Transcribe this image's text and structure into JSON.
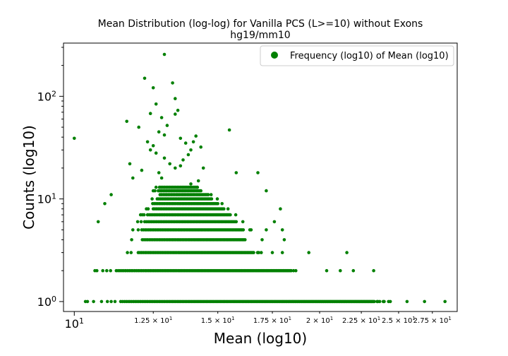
{
  "chart_data": {
    "type": "scatter",
    "title": "Mean Distribution (log-log) for Vanilla PCS (L>=10) without Exons",
    "subtitle": "hg19/mm10",
    "xlabel": "Mean (log10)",
    "ylabel": "Counts (log10)",
    "xscale": "log",
    "yscale": "log",
    "xlim": [
      9.7,
      29.5
    ],
    "ylim": [
      0.8,
      330
    ],
    "grid": false,
    "legend_position": "upper-right",
    "x_major_ticks": [
      {
        "value": 10,
        "label": "10^1"
      }
    ],
    "x_minor_ticks": [
      {
        "value": 12.5,
        "label": "1.25 × 10^1"
      },
      {
        "value": 15,
        "label": "1.5 × 10^1"
      },
      {
        "value": 17.5,
        "label": "1.75 × 10^1"
      },
      {
        "value": 20,
        "label": "2 × 10^1"
      },
      {
        "value": 22.5,
        "label": "2.25 × 10^1"
      },
      {
        "value": 25,
        "label": "2.5 × 10^1"
      },
      {
        "value": 27.5,
        "label": "2.75 × 10^1"
      }
    ],
    "y_major_ticks": [
      {
        "value": 1,
        "label": "10^0"
      },
      {
        "value": 10,
        "label": "10^1"
      },
      {
        "value": 100,
        "label": "10^2"
      }
    ],
    "series": [
      {
        "name": "Frequency (log10) of Mean (log10)",
        "color": "#008000",
        "bands": [
          {
            "y": 1,
            "x_min": 10.2,
            "x_max": 24.5,
            "density": 0.5
          },
          {
            "y": 2,
            "x_min": 10.6,
            "x_max": 19.2,
            "density": 0.5
          },
          {
            "y": 3,
            "x_min": 11.5,
            "x_max": 17.0,
            "density": 0.5
          },
          {
            "y": 4,
            "x_min": 11.7,
            "x_max": 16.6,
            "density": 0.5
          },
          {
            "y": 5,
            "x_min": 11.8,
            "x_max": 16.5,
            "density": 0.5
          },
          {
            "y": 6,
            "x_min": 11.9,
            "x_max": 16.2,
            "density": 0.5
          },
          {
            "y": 7,
            "x_min": 12.0,
            "x_max": 15.9,
            "density": 0.5
          },
          {
            "y": 8,
            "x_min": 12.2,
            "x_max": 15.5,
            "density": 0.55
          },
          {
            "y": 9,
            "x_min": 12.3,
            "x_max": 15.3,
            "density": 0.6
          },
          {
            "y": 10,
            "x_min": 12.4,
            "x_max": 15.0,
            "density": 0.65
          },
          {
            "y": 11,
            "x_min": 12.5,
            "x_max": 14.8,
            "density": 0.7
          },
          {
            "y": 12,
            "x_min": 12.5,
            "x_max": 14.5,
            "density": 0.75
          },
          {
            "y": 13,
            "x_min": 12.6,
            "x_max": 14.3,
            "density": 0.8
          }
        ],
        "points": [
          [
            10.0,
            39
          ],
          [
            25.6,
            1
          ],
          [
            26.9,
            1
          ],
          [
            28.5,
            1
          ],
          [
            23.3,
            2
          ],
          [
            22.0,
            2
          ],
          [
            21.2,
            2
          ],
          [
            20.4,
            2
          ],
          [
            21.6,
            3
          ],
          [
            17.5,
            3
          ],
          [
            18.0,
            3
          ],
          [
            19.4,
            3
          ],
          [
            18.1,
            4
          ],
          [
            17.0,
            4
          ],
          [
            18.0,
            5
          ],
          [
            17.2,
            5
          ],
          [
            10.7,
            6
          ],
          [
            17.6,
            6
          ],
          [
            10.9,
            9
          ],
          [
            17.9,
            8
          ],
          [
            11.1,
            11
          ],
          [
            17.2,
            12
          ],
          [
            16.8,
            18
          ],
          [
            15.8,
            18
          ],
          [
            11.6,
            57
          ],
          [
            12.0,
            50
          ],
          [
            11.7,
            22
          ],
          [
            15.5,
            47
          ],
          [
            12.2,
            150
          ],
          [
            12.4,
            68
          ],
          [
            12.6,
            84
          ],
          [
            12.5,
            121
          ],
          [
            12.9,
            256
          ],
          [
            13.3,
            95
          ],
          [
            13.2,
            135
          ],
          [
            13.3,
            67
          ],
          [
            13.4,
            73
          ],
          [
            12.8,
            62
          ],
          [
            12.9,
            42
          ],
          [
            12.7,
            45
          ],
          [
            13.0,
            52
          ],
          [
            13.5,
            39
          ],
          [
            14.1,
            41
          ],
          [
            13.9,
            30
          ],
          [
            13.8,
            27
          ],
          [
            14.3,
            32
          ],
          [
            14.0,
            36
          ],
          [
            13.7,
            35
          ],
          [
            12.3,
            36
          ],
          [
            12.4,
            30
          ],
          [
            12.5,
            33
          ],
          [
            12.6,
            28
          ],
          [
            13.6,
            24
          ],
          [
            13.1,
            22
          ],
          [
            12.9,
            25
          ],
          [
            12.7,
            18
          ],
          [
            13.5,
            21
          ],
          [
            14.4,
            20
          ],
          [
            14.2,
            15
          ],
          [
            11.8,
            16
          ],
          [
            12.1,
            19
          ],
          [
            13.9,
            14
          ],
          [
            12.8,
            16
          ],
          [
            13.3,
            20
          ]
        ]
      }
    ]
  }
}
